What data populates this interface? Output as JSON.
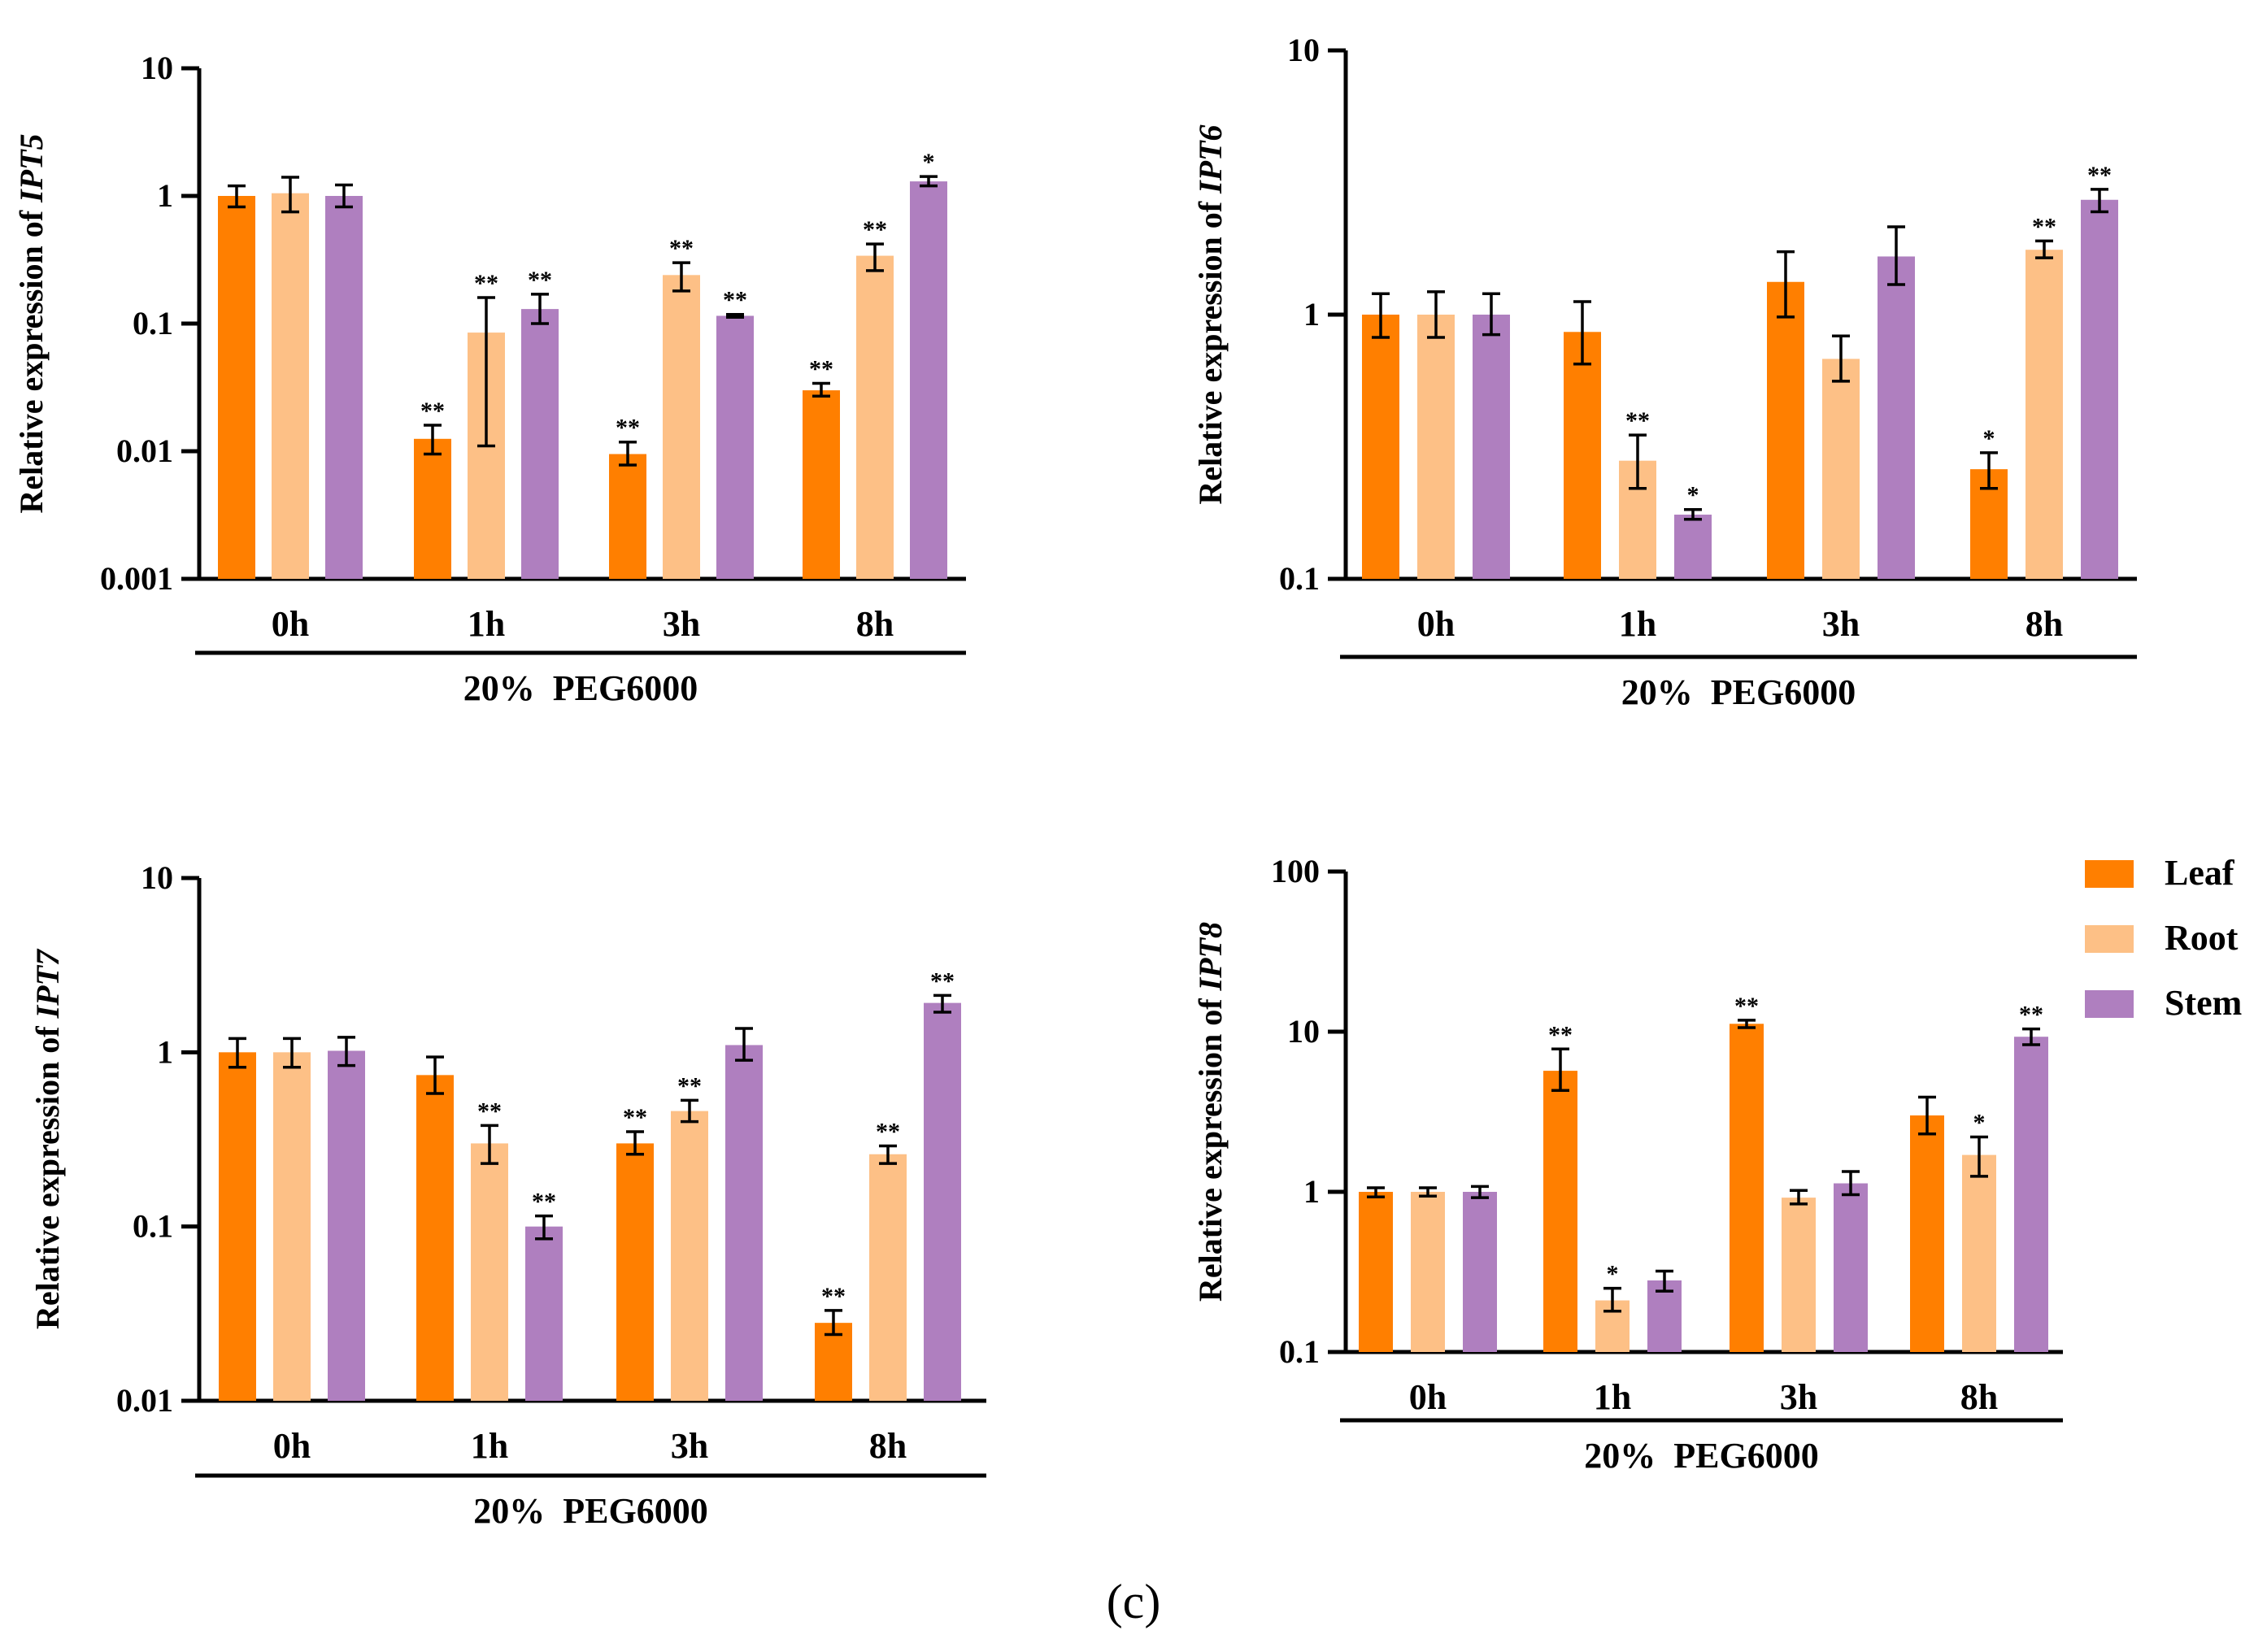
{
  "panel_label": "(c)",
  "colors": {
    "Leaf": "#ff7f00",
    "Root": "#fdc086",
    "Stem": "#af7fbf"
  },
  "legend": [
    "Leaf",
    "Root",
    "Stem"
  ],
  "chart_data": [
    {
      "type": "bar",
      "yscale": "log",
      "title": "",
      "ylabel_prefix": "Relative expression of ",
      "gene": "IPT5",
      "categories": [
        "0h",
        "1h",
        "3h",
        "8h"
      ],
      "xlabel": "20%  PEG6000",
      "ylim": [
        0.001,
        10
      ],
      "yticks": [
        {
          "value": 0.001,
          "label": "0.001"
        },
        {
          "value": 0.01,
          "label": "0.01"
        },
        {
          "value": 0.1,
          "label": "0.1"
        },
        {
          "value": 1,
          "label": "1"
        },
        {
          "value": 10,
          "label": "10"
        }
      ],
      "series": [
        {
          "name": "Leaf",
          "values": [
            1.0,
            0.0125,
            0.0095,
            0.03
          ],
          "err_low": [
            0.82,
            0.0095,
            0.0078,
            0.027
          ],
          "err_high": [
            1.2,
            0.016,
            0.0118,
            0.034
          ],
          "sig": [
            "",
            "**",
            "**",
            "**"
          ]
        },
        {
          "name": "Root",
          "values": [
            1.05,
            0.085,
            0.24,
            0.34
          ],
          "err_low": [
            0.75,
            0.011,
            0.18,
            0.26
          ],
          "err_high": [
            1.4,
            0.16,
            0.3,
            0.42
          ],
          "sig": [
            "",
            "**",
            "**",
            "**"
          ]
        },
        {
          "name": "Stem",
          "values": [
            1.0,
            0.13,
            0.115,
            1.3
          ],
          "err_low": [
            0.82,
            0.1,
            0.112,
            1.2
          ],
          "err_high": [
            1.22,
            0.17,
            0.118,
            1.42
          ],
          "sig": [
            "",
            "**",
            "**",
            "*"
          ]
        }
      ]
    },
    {
      "type": "bar",
      "yscale": "log",
      "title": "",
      "ylabel_prefix": "Relative expression of ",
      "gene": "IPT6",
      "categories": [
        "0h",
        "1h",
        "3h",
        "8h"
      ],
      "xlabel": "20%  PEG6000",
      "ylim": [
        0.1,
        10
      ],
      "yticks": [
        {
          "value": 0.1,
          "label": "0.1"
        },
        {
          "value": 1,
          "label": "1"
        },
        {
          "value": 10,
          "label": "10"
        }
      ],
      "series": [
        {
          "name": "Leaf",
          "values": [
            1.0,
            0.86,
            1.33,
            0.26
          ],
          "err_low": [
            0.82,
            0.65,
            0.98,
            0.22
          ],
          "err_high": [
            1.2,
            1.12,
            1.73,
            0.3
          ],
          "sig": [
            "",
            "",
            "",
            "*"
          ]
        },
        {
          "name": "Root",
          "values": [
            1.0,
            0.28,
            0.68,
            1.76
          ],
          "err_low": [
            0.82,
            0.22,
            0.56,
            1.64
          ],
          "err_high": [
            1.22,
            0.35,
            0.83,
            1.9
          ],
          "sig": [
            "",
            "**",
            "",
            "**"
          ]
        },
        {
          "name": "Stem",
          "values": [
            1.0,
            0.175,
            1.66,
            2.72
          ],
          "err_low": [
            0.84,
            0.168,
            1.3,
            2.45
          ],
          "err_high": [
            1.2,
            0.183,
            2.15,
            2.98
          ],
          "sig": [
            "",
            "*",
            "",
            "**"
          ]
        }
      ]
    },
    {
      "type": "bar",
      "yscale": "log",
      "title": "",
      "ylabel_prefix": "Relative expression of ",
      "gene": "IPT7",
      "categories": [
        "0h",
        "1h",
        "3h",
        "8h"
      ],
      "xlabel": "20%  PEG6000",
      "ylim": [
        0.01,
        10
      ],
      "yticks": [
        {
          "value": 0.01,
          "label": "0.01"
        },
        {
          "value": 0.1,
          "label": "0.1"
        },
        {
          "value": 1,
          "label": "1"
        },
        {
          "value": 10,
          "label": "10"
        }
      ],
      "series": [
        {
          "name": "Leaf",
          "values": [
            1.0,
            0.74,
            0.3,
            0.028
          ],
          "err_low": [
            0.82,
            0.58,
            0.26,
            0.024
          ],
          "err_high": [
            1.2,
            0.94,
            0.35,
            0.033
          ],
          "sig": [
            "",
            "",
            "**",
            "**"
          ]
        },
        {
          "name": "Root",
          "values": [
            1.0,
            0.3,
            0.46,
            0.26
          ],
          "err_low": [
            0.82,
            0.23,
            0.4,
            0.23
          ],
          "err_high": [
            1.2,
            0.38,
            0.53,
            0.29
          ],
          "sig": [
            "",
            "**",
            "**",
            "**"
          ]
        },
        {
          "name": "Stem",
          "values": [
            1.02,
            0.1,
            1.1,
            1.92
          ],
          "err_low": [
            0.84,
            0.085,
            0.9,
            1.7
          ],
          "err_high": [
            1.22,
            0.115,
            1.37,
            2.12
          ],
          "sig": [
            "",
            "**",
            "",
            "**"
          ]
        }
      ]
    },
    {
      "type": "bar",
      "yscale": "log",
      "title": "",
      "ylabel_prefix": "Relative expression of ",
      "gene": "IPT8",
      "categories": [
        "0h",
        "1h",
        "3h",
        "8h"
      ],
      "xlabel": "20%  PEG6000",
      "ylim": [
        0.1,
        100
      ],
      "yticks": [
        {
          "value": 0.1,
          "label": "0.1"
        },
        {
          "value": 1,
          "label": "1"
        },
        {
          "value": 10,
          "label": "10"
        },
        {
          "value": 100,
          "label": "100"
        }
      ],
      "series": [
        {
          "name": "Leaf",
          "values": [
            1.0,
            5.7,
            11.2,
            3.0
          ],
          "err_low": [
            0.93,
            4.3,
            10.6,
            2.3
          ],
          "err_high": [
            1.06,
            7.8,
            11.8,
            3.9
          ],
          "sig": [
            "",
            "**",
            "**",
            ""
          ]
        },
        {
          "name": "Root",
          "values": [
            1.0,
            0.21,
            0.92,
            1.7
          ],
          "err_low": [
            0.94,
            0.18,
            0.84,
            1.25
          ],
          "err_high": [
            1.06,
            0.25,
            1.02,
            2.2
          ],
          "sig": [
            "",
            "*",
            "",
            "*"
          ]
        },
        {
          "name": "Stem",
          "values": [
            1.0,
            0.28,
            1.13,
            9.3
          ],
          "err_low": [
            0.92,
            0.24,
            0.96,
            8.3
          ],
          "err_high": [
            1.08,
            0.32,
            1.34,
            10.4
          ],
          "sig": [
            "",
            "",
            "",
            "**"
          ]
        }
      ]
    }
  ]
}
